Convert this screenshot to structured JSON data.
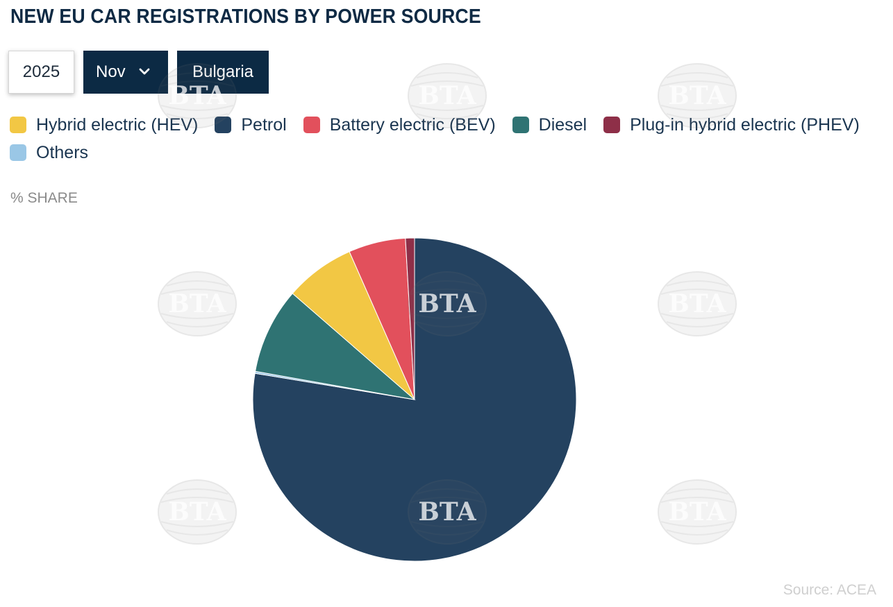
{
  "title": "NEW EU CAR REGISTRATIONS BY POWER SOURCE",
  "controls": {
    "year": "2025",
    "month": "Nov",
    "country": "Bulgaria"
  },
  "unit_label": "% SHARE",
  "source": "Source:  ACEA",
  "watermark_text": "BTA",
  "chart_data": {
    "type": "pie",
    "title": "NEW EU CAR REGISTRATIONS BY POWER SOURCE",
    "unit": "% SHARE",
    "legend_position": "top",
    "start_angle_deg": 0,
    "slices": [
      {
        "name": "Hybrid electric (HEV)",
        "value": 7.0,
        "color": "#f2c744",
        "order": 4
      },
      {
        "name": "Petrol",
        "value": 77.6,
        "color": "#244260",
        "order": 1
      },
      {
        "name": "Battery electric (BEV)",
        "value": 5.7,
        "color": "#e2505c",
        "order": 5
      },
      {
        "name": "Diesel",
        "value": 8.6,
        "color": "#2f7373",
        "order": 3
      },
      {
        "name": "Plug-in hybrid electric (PHEV)",
        "value": 0.9,
        "color": "#8e2f48",
        "order": 6
      },
      {
        "name": "Others",
        "value": 0.2,
        "color": "#9ac7e6",
        "order": 2
      }
    ]
  }
}
